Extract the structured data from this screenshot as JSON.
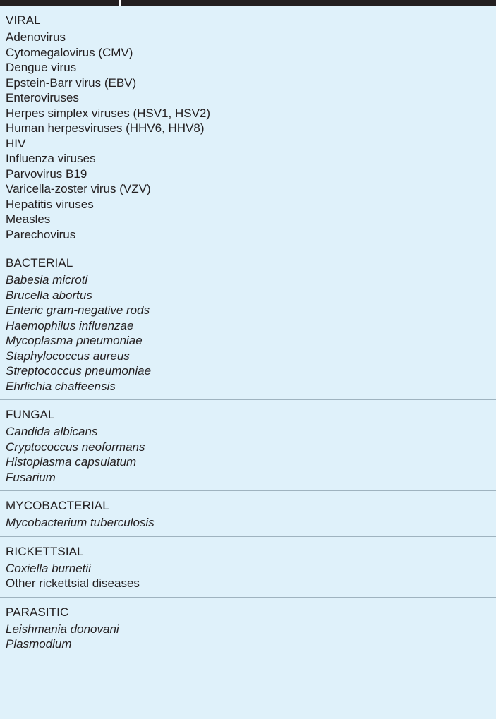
{
  "sections": [
    {
      "heading": "VIRAL",
      "items": [
        {
          "text": "Adenovirus",
          "italic": false
        },
        {
          "text": "Cytomegalovirus (CMV)",
          "italic": false
        },
        {
          "text": "Dengue virus",
          "italic": false
        },
        {
          "text": "Epstein-Barr virus (EBV)",
          "italic": false
        },
        {
          "text": "Enteroviruses",
          "italic": false
        },
        {
          "text": "Herpes simplex viruses (HSV1, HSV2)",
          "italic": false
        },
        {
          "text": "Human herpesviruses (HHV6, HHV8)",
          "italic": false
        },
        {
          "text": "HIV",
          "italic": false
        },
        {
          "text": "Influenza viruses",
          "italic": false
        },
        {
          "text": "Parvovirus B19",
          "italic": false
        },
        {
          "text": "Varicella-zoster virus (VZV)",
          "italic": false
        },
        {
          "text": "Hepatitis viruses",
          "italic": false
        },
        {
          "text": "Measles",
          "italic": false
        },
        {
          "text": "Parechovirus",
          "italic": false
        }
      ]
    },
    {
      "heading": "BACTERIAL",
      "items": [
        {
          "text": "Babesia microti",
          "italic": true
        },
        {
          "text": "Brucella abortus",
          "italic": true
        },
        {
          "text": "Enteric gram-negative rods",
          "italic": true
        },
        {
          "text": "Haemophilus influenzae",
          "italic": true
        },
        {
          "text": "Mycoplasma pneumoniae",
          "italic": true
        },
        {
          "text": "Staphylococcus aureus",
          "italic": true
        },
        {
          "text": "Streptococcus pneumoniae",
          "italic": true
        },
        {
          "text": "Ehrlichia chaffeensis",
          "italic": true
        }
      ]
    },
    {
      "heading": "FUNGAL",
      "items": [
        {
          "text": "Candida albicans",
          "italic": true
        },
        {
          "text": "Cryptococcus neoformans",
          "italic": true
        },
        {
          "text": "Histoplasma capsulatum",
          "italic": true
        },
        {
          "text": "Fusarium",
          "italic": true
        }
      ]
    },
    {
      "heading": "MYCOBACTERIAL",
      "items": [
        {
          "text": "Mycobacterium tuberculosis",
          "italic": true
        }
      ]
    },
    {
      "heading": "RICKETTSIAL",
      "items": [
        {
          "text": "Coxiella burnetii",
          "italic": true
        },
        {
          "text": "Other rickettsial diseases",
          "italic": false
        }
      ]
    },
    {
      "heading": "PARASITIC",
      "items": [
        {
          "text": "Leishmania donovani",
          "italic": true
        },
        {
          "text": "Plasmodium",
          "italic": true
        }
      ]
    }
  ],
  "colors": {
    "background": "#dff1fa",
    "text": "#231f20",
    "header_bar": "#231f20",
    "row_divider": "#9fb3bf"
  }
}
